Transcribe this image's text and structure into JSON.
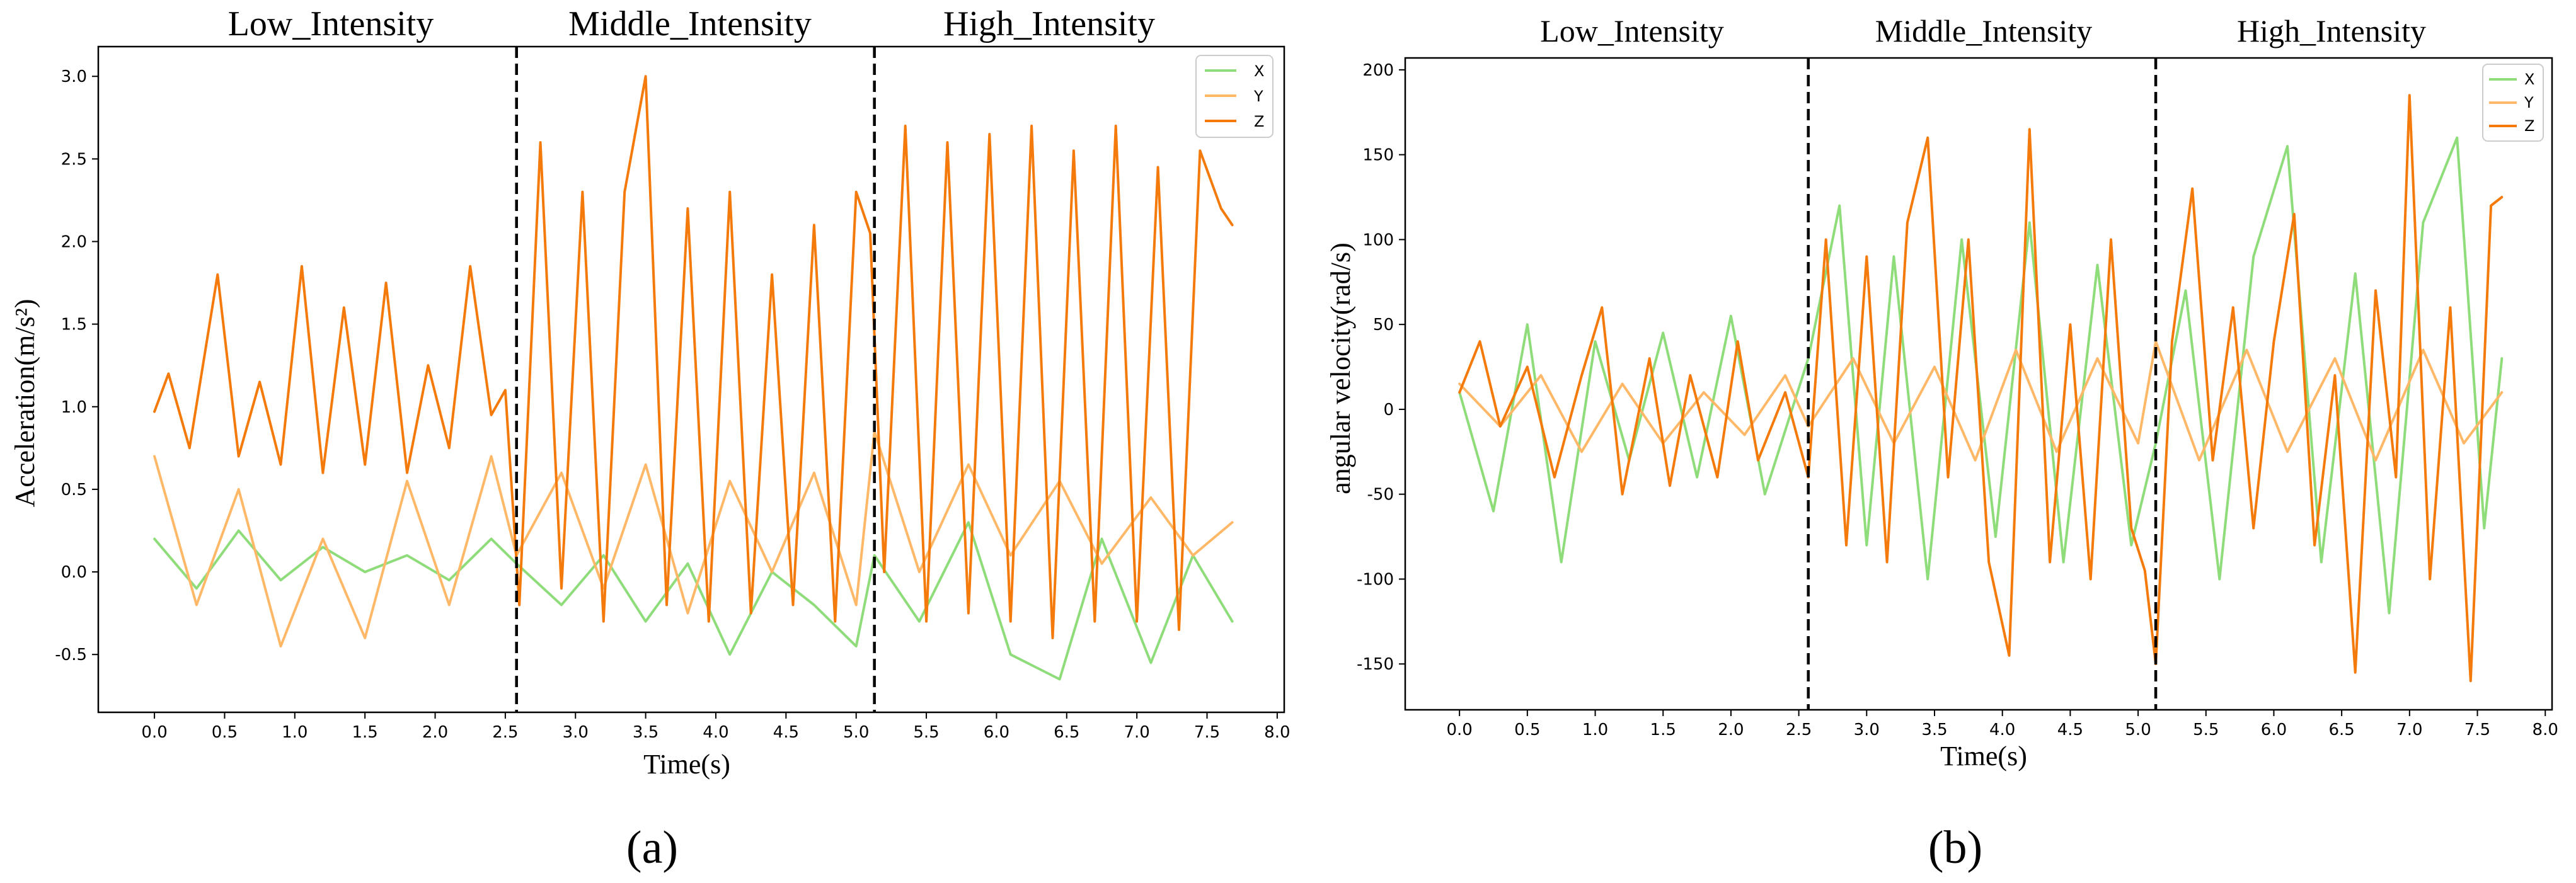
{
  "chart_data": [
    {
      "type": "line",
      "panel_caption": "(a)",
      "xlabel": "Time(s)",
      "ylabel": "Acceleration(m/s²)",
      "xlim": [
        -0.4,
        8.05
      ],
      "ylim": [
        -0.85,
        3.18
      ],
      "xticks": [
        0.0,
        0.5,
        1.0,
        1.5,
        2.0,
        2.5,
        3.0,
        3.5,
        4.0,
        4.5,
        5.0,
        5.5,
        6.0,
        6.5,
        7.0,
        7.5,
        8.0
      ],
      "xtick_labels": [
        "0.0",
        "0.5",
        "1.0",
        "1.5",
        "2.0",
        "2.5",
        "3.0",
        "3.5",
        "4.0",
        "4.5",
        "5.0",
        "5.5",
        "6.0",
        "6.5",
        "7.0",
        "7.5",
        "8.0"
      ],
      "yticks": [
        -0.5,
        0.0,
        0.5,
        1.0,
        1.5,
        2.0,
        2.5,
        3.0
      ],
      "ytick_labels": [
        "-0.5",
        "0.0",
        "0.5",
        "1.0",
        "1.5",
        "2.0",
        "2.5",
        "3.0"
      ],
      "phase_boundaries": [
        2.58,
        5.13
      ],
      "phase_labels": [
        "Low_Intensity",
        "Middle_Intensity",
        "High_Intensity"
      ],
      "legend_position": "top-right",
      "series": [
        {
          "name": "X",
          "color": "#8fdc7a",
          "x": [
            0.0,
            0.3,
            0.6,
            0.9,
            1.2,
            1.5,
            1.8,
            2.1,
            2.4,
            2.58,
            2.9,
            3.2,
            3.5,
            3.8,
            4.1,
            4.4,
            4.7,
            5.0,
            5.13,
            5.45,
            5.8,
            6.1,
            6.45,
            6.75,
            7.1,
            7.4,
            7.68
          ],
          "y": [
            0.2,
            -0.1,
            0.25,
            -0.05,
            0.15,
            0.0,
            0.1,
            -0.05,
            0.2,
            0.05,
            -0.2,
            0.1,
            -0.3,
            0.05,
            -0.5,
            0.0,
            -0.2,
            -0.45,
            0.1,
            -0.3,
            0.3,
            -0.5,
            -0.65,
            0.2,
            -0.55,
            0.1,
            -0.3
          ]
        },
        {
          "name": "Y",
          "color": "#ffb867",
          "x": [
            0.0,
            0.3,
            0.6,
            0.9,
            1.2,
            1.5,
            1.8,
            2.1,
            2.4,
            2.58,
            2.9,
            3.2,
            3.5,
            3.8,
            4.1,
            4.4,
            4.7,
            5.0,
            5.13,
            5.45,
            5.8,
            6.1,
            6.45,
            6.75,
            7.1,
            7.4,
            7.68
          ],
          "y": [
            0.7,
            -0.2,
            0.5,
            -0.45,
            0.2,
            -0.4,
            0.55,
            -0.2,
            0.7,
            0.1,
            0.6,
            -0.1,
            0.65,
            -0.25,
            0.55,
            0.0,
            0.6,
            -0.2,
            0.85,
            0.0,
            0.65,
            0.1,
            0.55,
            0.05,
            0.45,
            0.1,
            0.3
          ]
        },
        {
          "name": "Z",
          "color": "#f47a0c",
          "x": [
            0.0,
            0.1,
            0.25,
            0.45,
            0.6,
            0.75,
            0.9,
            1.05,
            1.2,
            1.35,
            1.5,
            1.65,
            1.8,
            1.95,
            2.1,
            2.25,
            2.4,
            2.5,
            2.6,
            2.75,
            2.9,
            3.05,
            3.2,
            3.35,
            3.5,
            3.65,
            3.8,
            3.95,
            4.1,
            4.25,
            4.4,
            4.55,
            4.7,
            4.85,
            5.0,
            5.1,
            5.2,
            5.35,
            5.5,
            5.65,
            5.8,
            5.95,
            6.1,
            6.25,
            6.4,
            6.55,
            6.7,
            6.85,
            7.0,
            7.15,
            7.3,
            7.45,
            7.6,
            7.68
          ],
          "y": [
            0.97,
            1.2,
            0.75,
            1.8,
            0.7,
            1.15,
            0.65,
            1.85,
            0.6,
            1.6,
            0.65,
            1.75,
            0.6,
            1.25,
            0.75,
            1.85,
            0.95,
            1.1,
            -0.2,
            2.6,
            -0.1,
            2.3,
            -0.3,
            2.3,
            3.0,
            -0.2,
            2.2,
            -0.3,
            2.3,
            -0.25,
            1.8,
            -0.2,
            2.1,
            -0.3,
            2.3,
            2.05,
            0.0,
            2.7,
            -0.3,
            2.6,
            -0.25,
            2.65,
            -0.3,
            2.7,
            -0.4,
            2.55,
            -0.3,
            2.7,
            -0.3,
            2.45,
            -0.35,
            2.55,
            2.2,
            2.1
          ]
        }
      ]
    },
    {
      "type": "line",
      "panel_caption": "(b)",
      "xlabel": "Time(s)",
      "ylabel": "angular velocity(rad/s)",
      "xlim": [
        -0.4,
        8.05
      ],
      "ylim": [
        -177,
        207
      ],
      "xticks": [
        0.0,
        0.5,
        1.0,
        1.5,
        2.0,
        2.5,
        3.0,
        3.5,
        4.0,
        4.5,
        5.0,
        5.5,
        6.0,
        6.5,
        7.0,
        7.5,
        8.0
      ],
      "xtick_labels": [
        "0.0",
        "0.5",
        "1.0",
        "1.5",
        "2.0",
        "2.5",
        "3.0",
        "3.5",
        "4.0",
        "4.5",
        "5.0",
        "5.5",
        "6.0",
        "6.5",
        "7.0",
        "7.5",
        "8.0"
      ],
      "yticks": [
        -150,
        -100,
        -50,
        0,
        50,
        100,
        150,
        200
      ],
      "ytick_labels": [
        "-150",
        "-100",
        "-50",
        "0",
        "50",
        "100",
        "150",
        "200"
      ],
      "phase_boundaries": [
        2.57,
        5.13
      ],
      "phase_labels": [
        "Low_Intensity",
        "Middle_Intensity",
        "High_Intensity"
      ],
      "legend_position": "top-right",
      "series": [
        {
          "name": "X",
          "color": "#8fdc7a",
          "x": [
            0.0,
            0.25,
            0.5,
            0.75,
            1.0,
            1.25,
            1.5,
            1.75,
            2.0,
            2.25,
            2.57,
            2.8,
            3.0,
            3.2,
            3.45,
            3.7,
            3.95,
            4.2,
            4.45,
            4.7,
            4.95,
            5.13,
            5.35,
            5.6,
            5.85,
            6.1,
            6.35,
            6.6,
            6.85,
            7.1,
            7.35,
            7.55,
            7.68
          ],
          "y": [
            10,
            -60,
            50,
            -90,
            40,
            -30,
            45,
            -40,
            55,
            -50,
            30,
            120,
            -80,
            90,
            -100,
            100,
            -75,
            110,
            -90,
            85,
            -80,
            -20,
            70,
            -100,
            90,
            155,
            -90,
            80,
            -120,
            110,
            160,
            -70,
            30
          ]
        },
        {
          "name": "Y",
          "color": "#ffb867",
          "x": [
            0.0,
            0.3,
            0.6,
            0.9,
            1.2,
            1.5,
            1.8,
            2.1,
            2.4,
            2.57,
            2.9,
            3.2,
            3.5,
            3.8,
            4.1,
            4.4,
            4.7,
            5.0,
            5.13,
            5.45,
            5.8,
            6.1,
            6.45,
            6.75,
            7.1,
            7.4,
            7.68
          ],
          "y": [
            15,
            -10,
            20,
            -25,
            15,
            -20,
            10,
            -15,
            20,
            -10,
            30,
            -20,
            25,
            -30,
            35,
            -25,
            30,
            -20,
            40,
            -30,
            35,
            -25,
            30,
            -30,
            35,
            -20,
            10
          ]
        },
        {
          "name": "Z",
          "color": "#f47a0c",
          "x": [
            0.0,
            0.15,
            0.3,
            0.5,
            0.7,
            0.9,
            1.05,
            1.2,
            1.4,
            1.55,
            1.7,
            1.9,
            2.05,
            2.2,
            2.4,
            2.57,
            2.7,
            2.85,
            3.0,
            3.15,
            3.3,
            3.45,
            3.6,
            3.75,
            3.9,
            4.05,
            4.2,
            4.35,
            4.5,
            4.65,
            4.8,
            4.95,
            5.05,
            5.13,
            5.25,
            5.4,
            5.55,
            5.7,
            5.85,
            6.0,
            6.15,
            6.3,
            6.45,
            6.6,
            6.75,
            6.9,
            7.0,
            7.15,
            7.3,
            7.45,
            7.6,
            7.68
          ],
          "y": [
            10,
            40,
            -10,
            25,
            -40,
            20,
            60,
            -50,
            30,
            -45,
            20,
            -40,
            40,
            -30,
            10,
            -40,
            100,
            -80,
            90,
            -90,
            110,
            160,
            -40,
            100,
            -90,
            -145,
            165,
            -90,
            50,
            -100,
            100,
            -70,
            -95,
            -150,
            40,
            130,
            -30,
            60,
            -70,
            40,
            115,
            -80,
            20,
            -155,
            70,
            -40,
            185,
            -100,
            60,
            -160,
            120,
            125
          ]
        }
      ]
    }
  ]
}
